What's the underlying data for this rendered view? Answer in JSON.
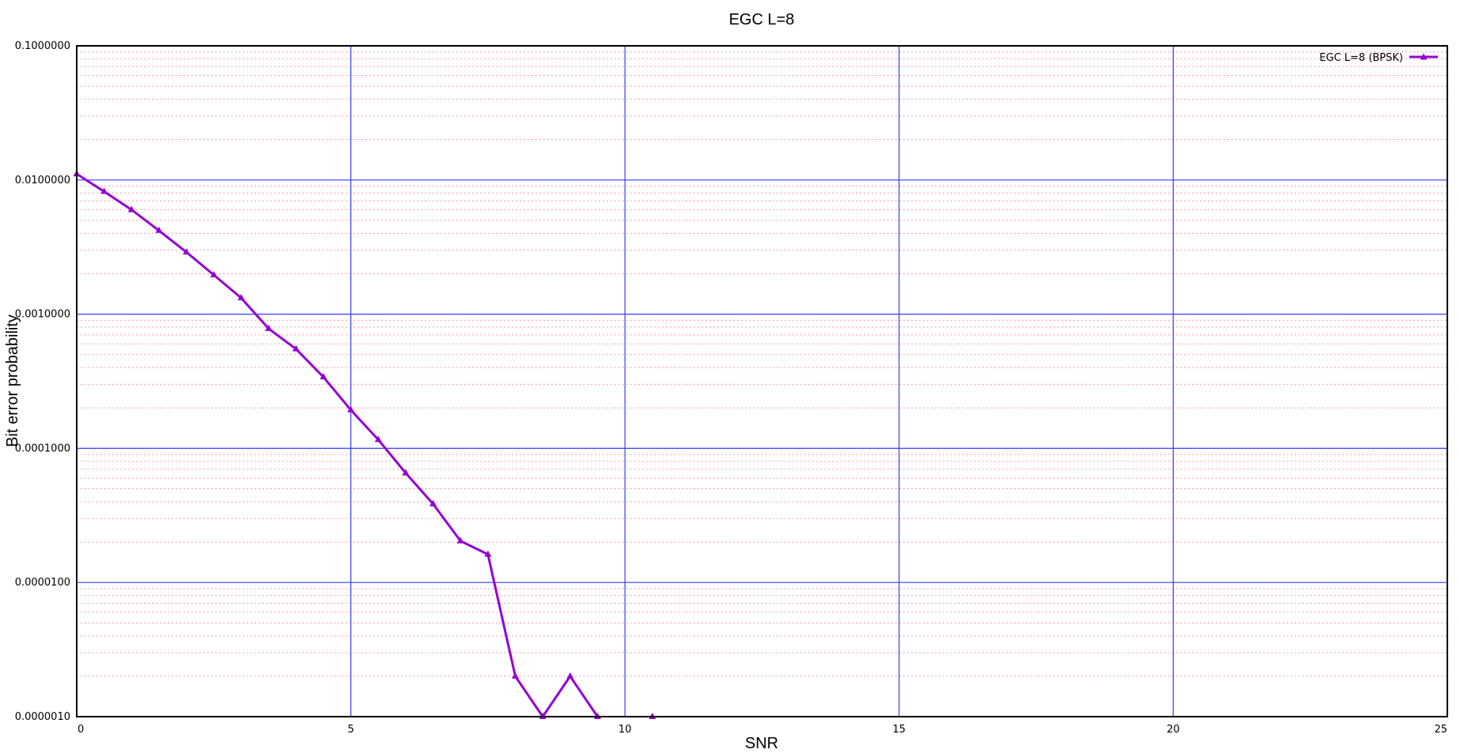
{
  "chart_data": {
    "type": "line",
    "title": "EGC L=8",
    "xlabel": "SNR",
    "ylabel": "Bit error probability",
    "xlim": [
      0,
      25
    ],
    "ylim": [
      1e-06,
      0.1
    ],
    "yscale": "log",
    "x_ticks": [
      0,
      5,
      10,
      15,
      20,
      25
    ],
    "x_tick_labels": [
      "0",
      "5",
      "10",
      "15",
      "20",
      "25"
    ],
    "y_ticks": [
      0.1,
      0.01,
      0.001,
      0.0001,
      1e-05,
      1e-06
    ],
    "y_tick_labels": [
      "0.1000000",
      "0.0100000",
      "0.0010000",
      "0.0001000",
      "0.0000100",
      "0.0000010"
    ],
    "grid": "on",
    "legend_position": "top-right",
    "colors": {
      "series": "#9400d3",
      "major_grid": "#3a3aff",
      "minor_grid": "#ff9aa8",
      "frame": "#000000"
    },
    "series": [
      {
        "name": "EGC L=8 (BPSK)",
        "marker": "triangle",
        "segments": [
          [
            [
              0,
              0.0111
            ],
            [
              0.5,
              0.0082
            ],
            [
              1,
              0.006
            ],
            [
              1.5,
              0.0042
            ],
            [
              2,
              0.0029
            ],
            [
              2.5,
              0.00196
            ],
            [
              3,
              0.00132
            ],
            [
              3.5,
              0.00078
            ],
            [
              4,
              0.00055
            ],
            [
              4.5,
              0.00034
            ],
            [
              5,
              0.000193
            ],
            [
              5.5,
              0.000116
            ],
            [
              6,
              6.55e-05
            ],
            [
              6.5,
              3.85e-05
            ],
            [
              7,
              2.04e-05
            ],
            [
              7.5,
              1.62e-05
            ],
            [
              8,
              2e-06
            ],
            [
              8.5,
              1e-06
            ],
            [
              9,
              2e-06
            ],
            [
              9.5,
              1e-06
            ]
          ],
          [
            [
              10.5,
              1e-06
            ]
          ]
        ]
      }
    ]
  }
}
